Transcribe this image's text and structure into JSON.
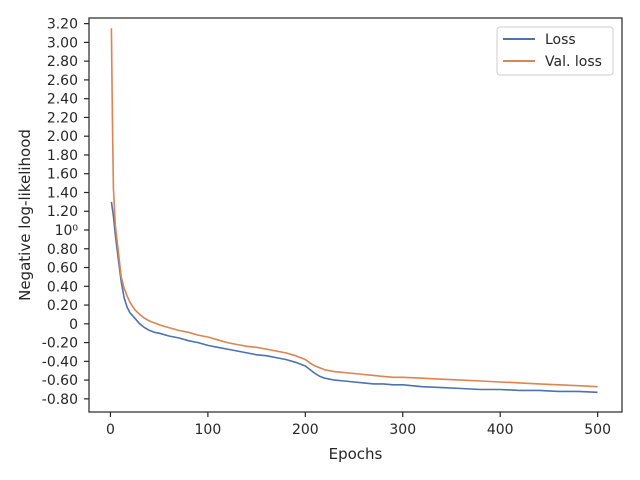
{
  "chart_data": {
    "type": "line",
    "title": "",
    "xlabel": "Epochs",
    "ylabel": "Negative log-likelihood",
    "xlim": [
      -22,
      525
    ],
    "ylim": [
      -0.94,
      3.26
    ],
    "grid": false,
    "legend_position": "top-right",
    "x_ticks": [
      {
        "value": 0,
        "label": "0"
      },
      {
        "value": 100,
        "label": "100"
      },
      {
        "value": 200,
        "label": "200"
      },
      {
        "value": 300,
        "label": "300"
      },
      {
        "value": 400,
        "label": "400"
      },
      {
        "value": 500,
        "label": "500"
      }
    ],
    "y_ticks": [
      {
        "value": -0.8,
        "label": "-0.80"
      },
      {
        "value": -0.6,
        "label": "-0.60"
      },
      {
        "value": -0.4,
        "label": "-0.40"
      },
      {
        "value": -0.2,
        "label": "-0.20"
      },
      {
        "value": 0,
        "label": "0"
      },
      {
        "value": 0.2,
        "label": "0.20"
      },
      {
        "value": 0.4,
        "label": "0.40"
      },
      {
        "value": 0.6,
        "label": "0.60"
      },
      {
        "value": 0.8,
        "label": "0.80"
      },
      {
        "value": 1.0,
        "label": "10⁰"
      },
      {
        "value": 1.2,
        "label": "1.20"
      },
      {
        "value": 1.4,
        "label": "1.40"
      },
      {
        "value": 1.6,
        "label": "1.60"
      },
      {
        "value": 1.8,
        "label": "1.80"
      },
      {
        "value": 2.0,
        "label": "2.00"
      },
      {
        "value": 2.2,
        "label": "2.20"
      },
      {
        "value": 2.4,
        "label": "2.40"
      },
      {
        "value": 2.6,
        "label": "2.60"
      },
      {
        "value": 2.8,
        "label": "2.80"
      },
      {
        "value": 3.0,
        "label": "3.00"
      },
      {
        "value": 3.2,
        "label": "3.20"
      }
    ],
    "series": [
      {
        "name": "Loss",
        "color": "#4c72b0",
        "x": [
          1,
          3,
          5,
          8,
          11,
          14,
          17,
          20,
          25,
          30,
          35,
          40,
          45,
          50,
          60,
          70,
          80,
          90,
          100,
          110,
          120,
          130,
          140,
          150,
          160,
          170,
          180,
          190,
          200,
          205,
          210,
          215,
          220,
          230,
          240,
          250,
          260,
          270,
          280,
          290,
          300,
          320,
          340,
          360,
          380,
          400,
          420,
          440,
          460,
          480,
          500
        ],
        "values": [
          1.3,
          1.15,
          0.95,
          0.7,
          0.45,
          0.28,
          0.18,
          0.12,
          0.06,
          0.0,
          -0.04,
          -0.07,
          -0.09,
          -0.1,
          -0.13,
          -0.15,
          -0.18,
          -0.2,
          -0.23,
          -0.25,
          -0.27,
          -0.29,
          -0.31,
          -0.33,
          -0.34,
          -0.36,
          -0.38,
          -0.41,
          -0.45,
          -0.49,
          -0.53,
          -0.56,
          -0.58,
          -0.6,
          -0.61,
          -0.62,
          -0.63,
          -0.64,
          -0.64,
          -0.65,
          -0.65,
          -0.67,
          -0.68,
          -0.69,
          -0.7,
          -0.7,
          -0.71,
          -0.71,
          -0.72,
          -0.72,
          -0.73
        ]
      },
      {
        "name": "Val. loss",
        "color": "#dd8452",
        "x": [
          1,
          2,
          3,
          5,
          8,
          11,
          14,
          17,
          20,
          25,
          30,
          35,
          40,
          45,
          50,
          60,
          70,
          80,
          90,
          100,
          110,
          120,
          130,
          140,
          150,
          160,
          170,
          180,
          190,
          200,
          205,
          210,
          215,
          220,
          230,
          240,
          250,
          260,
          270,
          280,
          290,
          300,
          320,
          340,
          360,
          380,
          400,
          420,
          440,
          460,
          480,
          500
        ],
        "values": [
          3.15,
          2.2,
          1.45,
          1.05,
          0.78,
          0.5,
          0.38,
          0.3,
          0.23,
          0.15,
          0.1,
          0.06,
          0.03,
          0.01,
          -0.01,
          -0.04,
          -0.07,
          -0.09,
          -0.12,
          -0.14,
          -0.17,
          -0.2,
          -0.22,
          -0.24,
          -0.25,
          -0.27,
          -0.29,
          -0.31,
          -0.34,
          -0.38,
          -0.42,
          -0.45,
          -0.47,
          -0.49,
          -0.51,
          -0.52,
          -0.53,
          -0.54,
          -0.55,
          -0.56,
          -0.57,
          -0.57,
          -0.58,
          -0.59,
          -0.6,
          -0.61,
          -0.62,
          -0.63,
          -0.64,
          -0.65,
          -0.66,
          -0.67
        ]
      }
    ]
  }
}
